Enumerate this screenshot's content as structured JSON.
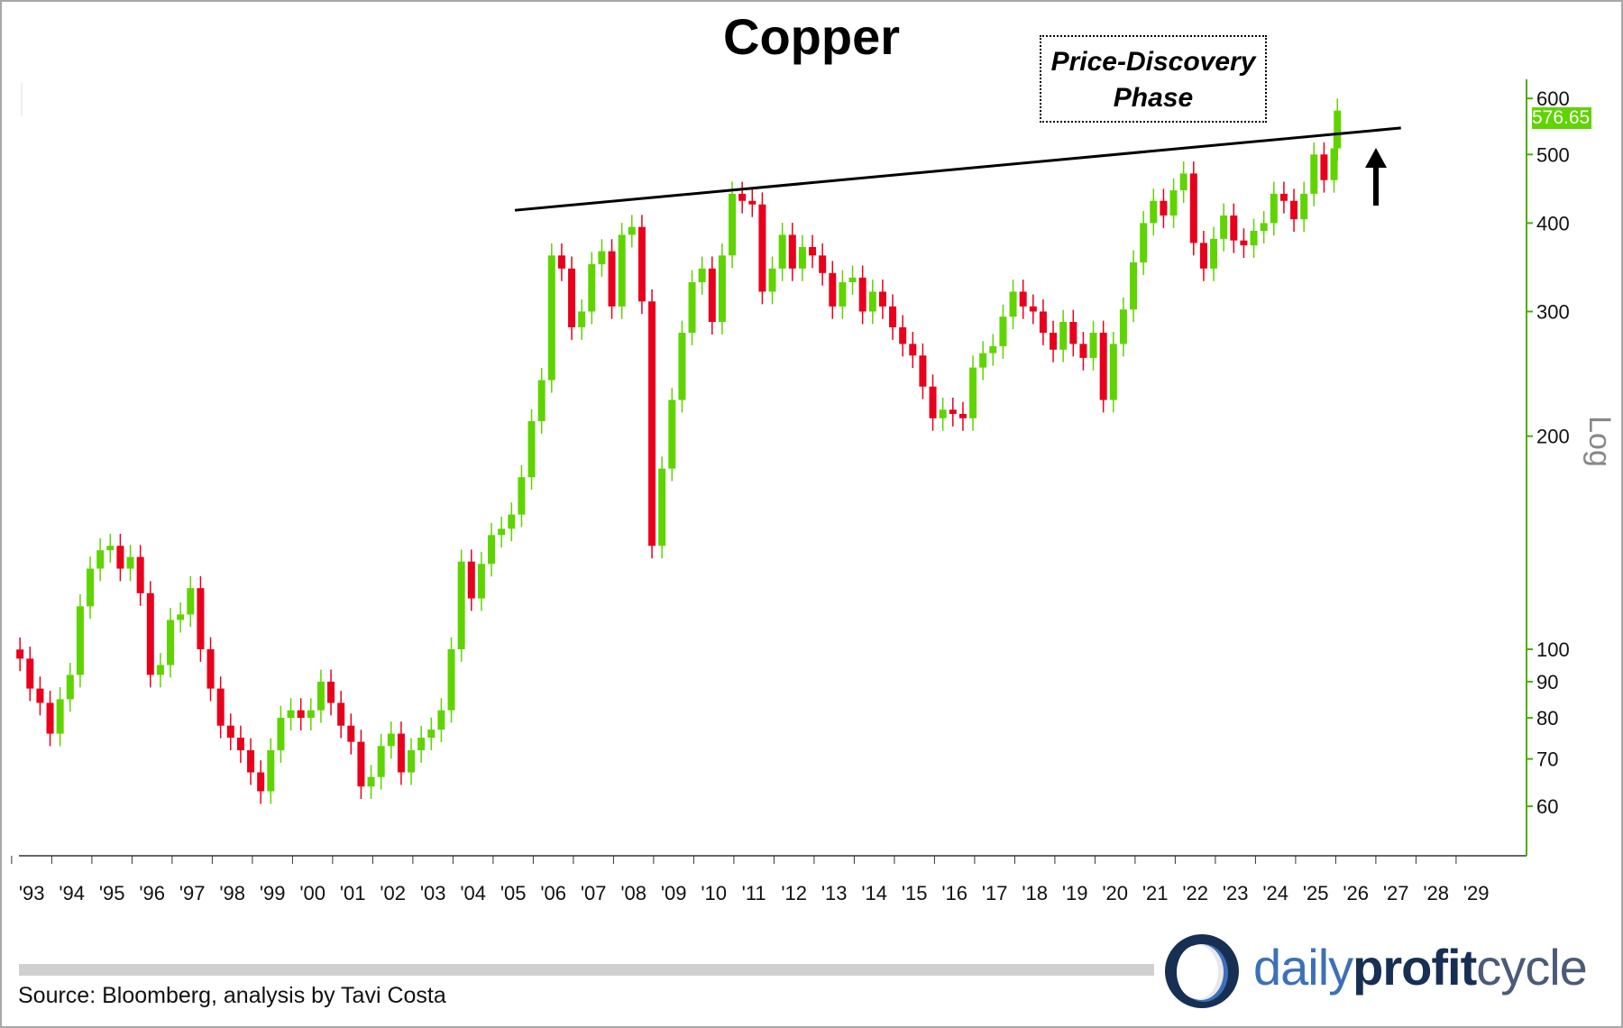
{
  "chart_data": {
    "type": "candlestick",
    "title": "Copper",
    "annotation": "Price-Discovery Phase",
    "annotation_lines": [
      "Price-Discovery",
      "Phase"
    ],
    "scale": "log",
    "scale_label": "Log",
    "ylim": [
      50,
      620
    ],
    "yticks": [
      60,
      70,
      80,
      90,
      100,
      200,
      300,
      400,
      500,
      600
    ],
    "xlim": [
      "1993-02",
      "2030-06"
    ],
    "xtick_labels": [
      "'93",
      "'94",
      "'95",
      "'96",
      "'97",
      "'98",
      "'99",
      "'00",
      "'01",
      "'02",
      "'03",
      "'04",
      "'05",
      "'06",
      "'07",
      "'08",
      "'09",
      "'10",
      "'11",
      "'12",
      "'13",
      "'14",
      "'15",
      "'16",
      "'17",
      "'18",
      "'19",
      "'20",
      "'21",
      "'22",
      "'23",
      "'24",
      "'25",
      "'26",
      "'27",
      "'28",
      "'29"
    ],
    "last_value": "576.65",
    "up_color": "#5fd400",
    "down_color": "#e8001c",
    "trendline": {
      "from": [
        "2005-07",
        417
      ],
      "to": [
        "2027-08",
        545
      ]
    },
    "grid": false,
    "series": [
      [
        "1993-03",
        97
      ],
      [
        "1993-06",
        88
      ],
      [
        "1993-09",
        84
      ],
      [
        "1993-12",
        76
      ],
      [
        "1994-03",
        85
      ],
      [
        "1994-06",
        92
      ],
      [
        "1994-09",
        115
      ],
      [
        "1994-12",
        130
      ],
      [
        "1995-03",
        138
      ],
      [
        "1995-06",
        140
      ],
      [
        "1995-09",
        130
      ],
      [
        "1995-12",
        135
      ],
      [
        "1996-03",
        120
      ],
      [
        "1996-06",
        92
      ],
      [
        "1996-09",
        95
      ],
      [
        "1996-12",
        110
      ],
      [
        "1997-03",
        112
      ],
      [
        "1997-06",
        122
      ],
      [
        "1997-09",
        100
      ],
      [
        "1997-12",
        88
      ],
      [
        "1998-03",
        78
      ],
      [
        "1998-06",
        75
      ],
      [
        "1998-09",
        72
      ],
      [
        "1998-12",
        67
      ],
      [
        "1999-03",
        63
      ],
      [
        "1999-06",
        72
      ],
      [
        "1999-09",
        80
      ],
      [
        "1999-12",
        82
      ],
      [
        "2000-03",
        80
      ],
      [
        "2000-06",
        82
      ],
      [
        "2000-09",
        90
      ],
      [
        "2000-12",
        84
      ],
      [
        "2001-03",
        78
      ],
      [
        "2001-06",
        74
      ],
      [
        "2001-09",
        64
      ],
      [
        "2001-12",
        66
      ],
      [
        "2002-03",
        73
      ],
      [
        "2002-06",
        76
      ],
      [
        "2002-09",
        67
      ],
      [
        "2002-12",
        72
      ],
      [
        "2003-03",
        75
      ],
      [
        "2003-06",
        77
      ],
      [
        "2003-09",
        82
      ],
      [
        "2003-12",
        100
      ],
      [
        "2004-03",
        133
      ],
      [
        "2004-06",
        118
      ],
      [
        "2004-09",
        132
      ],
      [
        "2004-12",
        145
      ],
      [
        "2005-03",
        148
      ],
      [
        "2005-06",
        155
      ],
      [
        "2005-09",
        175
      ],
      [
        "2005-12",
        210
      ],
      [
        "2006-03",
        240
      ],
      [
        "2006-06",
        360
      ],
      [
        "2006-09",
        345
      ],
      [
        "2006-12",
        285
      ],
      [
        "2007-03",
        300
      ],
      [
        "2007-06",
        350
      ],
      [
        "2007-09",
        365
      ],
      [
        "2007-12",
        305
      ],
      [
        "2008-03",
        385
      ],
      [
        "2008-06",
        395
      ],
      [
        "2008-09",
        310
      ],
      [
        "2008-12",
        140
      ],
      [
        "2009-03",
        180
      ],
      [
        "2009-06",
        225
      ],
      [
        "2009-09",
        280
      ],
      [
        "2009-12",
        330
      ],
      [
        "2010-03",
        345
      ],
      [
        "2010-06",
        290
      ],
      [
        "2010-09",
        360
      ],
      [
        "2010-12",
        440
      ],
      [
        "2011-03",
        430
      ],
      [
        "2011-06",
        425
      ],
      [
        "2011-09",
        320
      ],
      [
        "2011-12",
        345
      ],
      [
        "2012-03",
        385
      ],
      [
        "2012-06",
        345
      ],
      [
        "2012-09",
        370
      ],
      [
        "2012-12",
        360
      ],
      [
        "2013-03",
        340
      ],
      [
        "2013-06",
        305
      ],
      [
        "2013-09",
        330
      ],
      [
        "2013-12",
        335
      ],
      [
        "2014-03",
        300
      ],
      [
        "2014-06",
        320
      ],
      [
        "2014-09",
        305
      ],
      [
        "2014-12",
        285
      ],
      [
        "2015-03",
        270
      ],
      [
        "2015-06",
        260
      ],
      [
        "2015-09",
        235
      ],
      [
        "2015-12",
        212
      ],
      [
        "2016-03",
        218
      ],
      [
        "2016-06",
        215
      ],
      [
        "2016-09",
        212
      ],
      [
        "2016-12",
        250
      ],
      [
        "2017-03",
        262
      ],
      [
        "2017-06",
        268
      ],
      [
        "2017-09",
        295
      ],
      [
        "2017-12",
        320
      ],
      [
        "2018-03",
        305
      ],
      [
        "2018-06",
        300
      ],
      [
        "2018-09",
        280
      ],
      [
        "2018-12",
        265
      ],
      [
        "2019-03",
        290
      ],
      [
        "2019-06",
        270
      ],
      [
        "2019-09",
        258
      ],
      [
        "2019-12",
        280
      ],
      [
        "2020-03",
        225
      ],
      [
        "2020-06",
        270
      ],
      [
        "2020-09",
        302
      ],
      [
        "2020-12",
        352
      ],
      [
        "2021-03",
        400
      ],
      [
        "2021-06",
        430
      ],
      [
        "2021-09",
        410
      ],
      [
        "2021-12",
        445
      ],
      [
        "2022-03",
        470
      ],
      [
        "2022-06",
        375
      ],
      [
        "2022-09",
        345
      ],
      [
        "2022-12",
        380
      ],
      [
        "2023-03",
        410
      ],
      [
        "2023-06",
        378
      ],
      [
        "2023-09",
        372
      ],
      [
        "2023-12",
        390
      ],
      [
        "2024-03",
        400
      ],
      [
        "2024-06",
        440
      ],
      [
        "2024-09",
        430
      ],
      [
        "2024-12",
        405
      ],
      [
        "2025-03",
        440
      ],
      [
        "2025-06",
        500
      ],
      [
        "2025-09",
        460
      ],
      [
        "2025-12",
        510
      ],
      [
        "2026-01",
        576.65
      ]
    ]
  },
  "footer": {
    "source": "Source: Bloomberg, analysis by Tavi Costa",
    "logo": {
      "part1": "daily",
      "part2": "profit",
      "part3": "cycle"
    }
  }
}
